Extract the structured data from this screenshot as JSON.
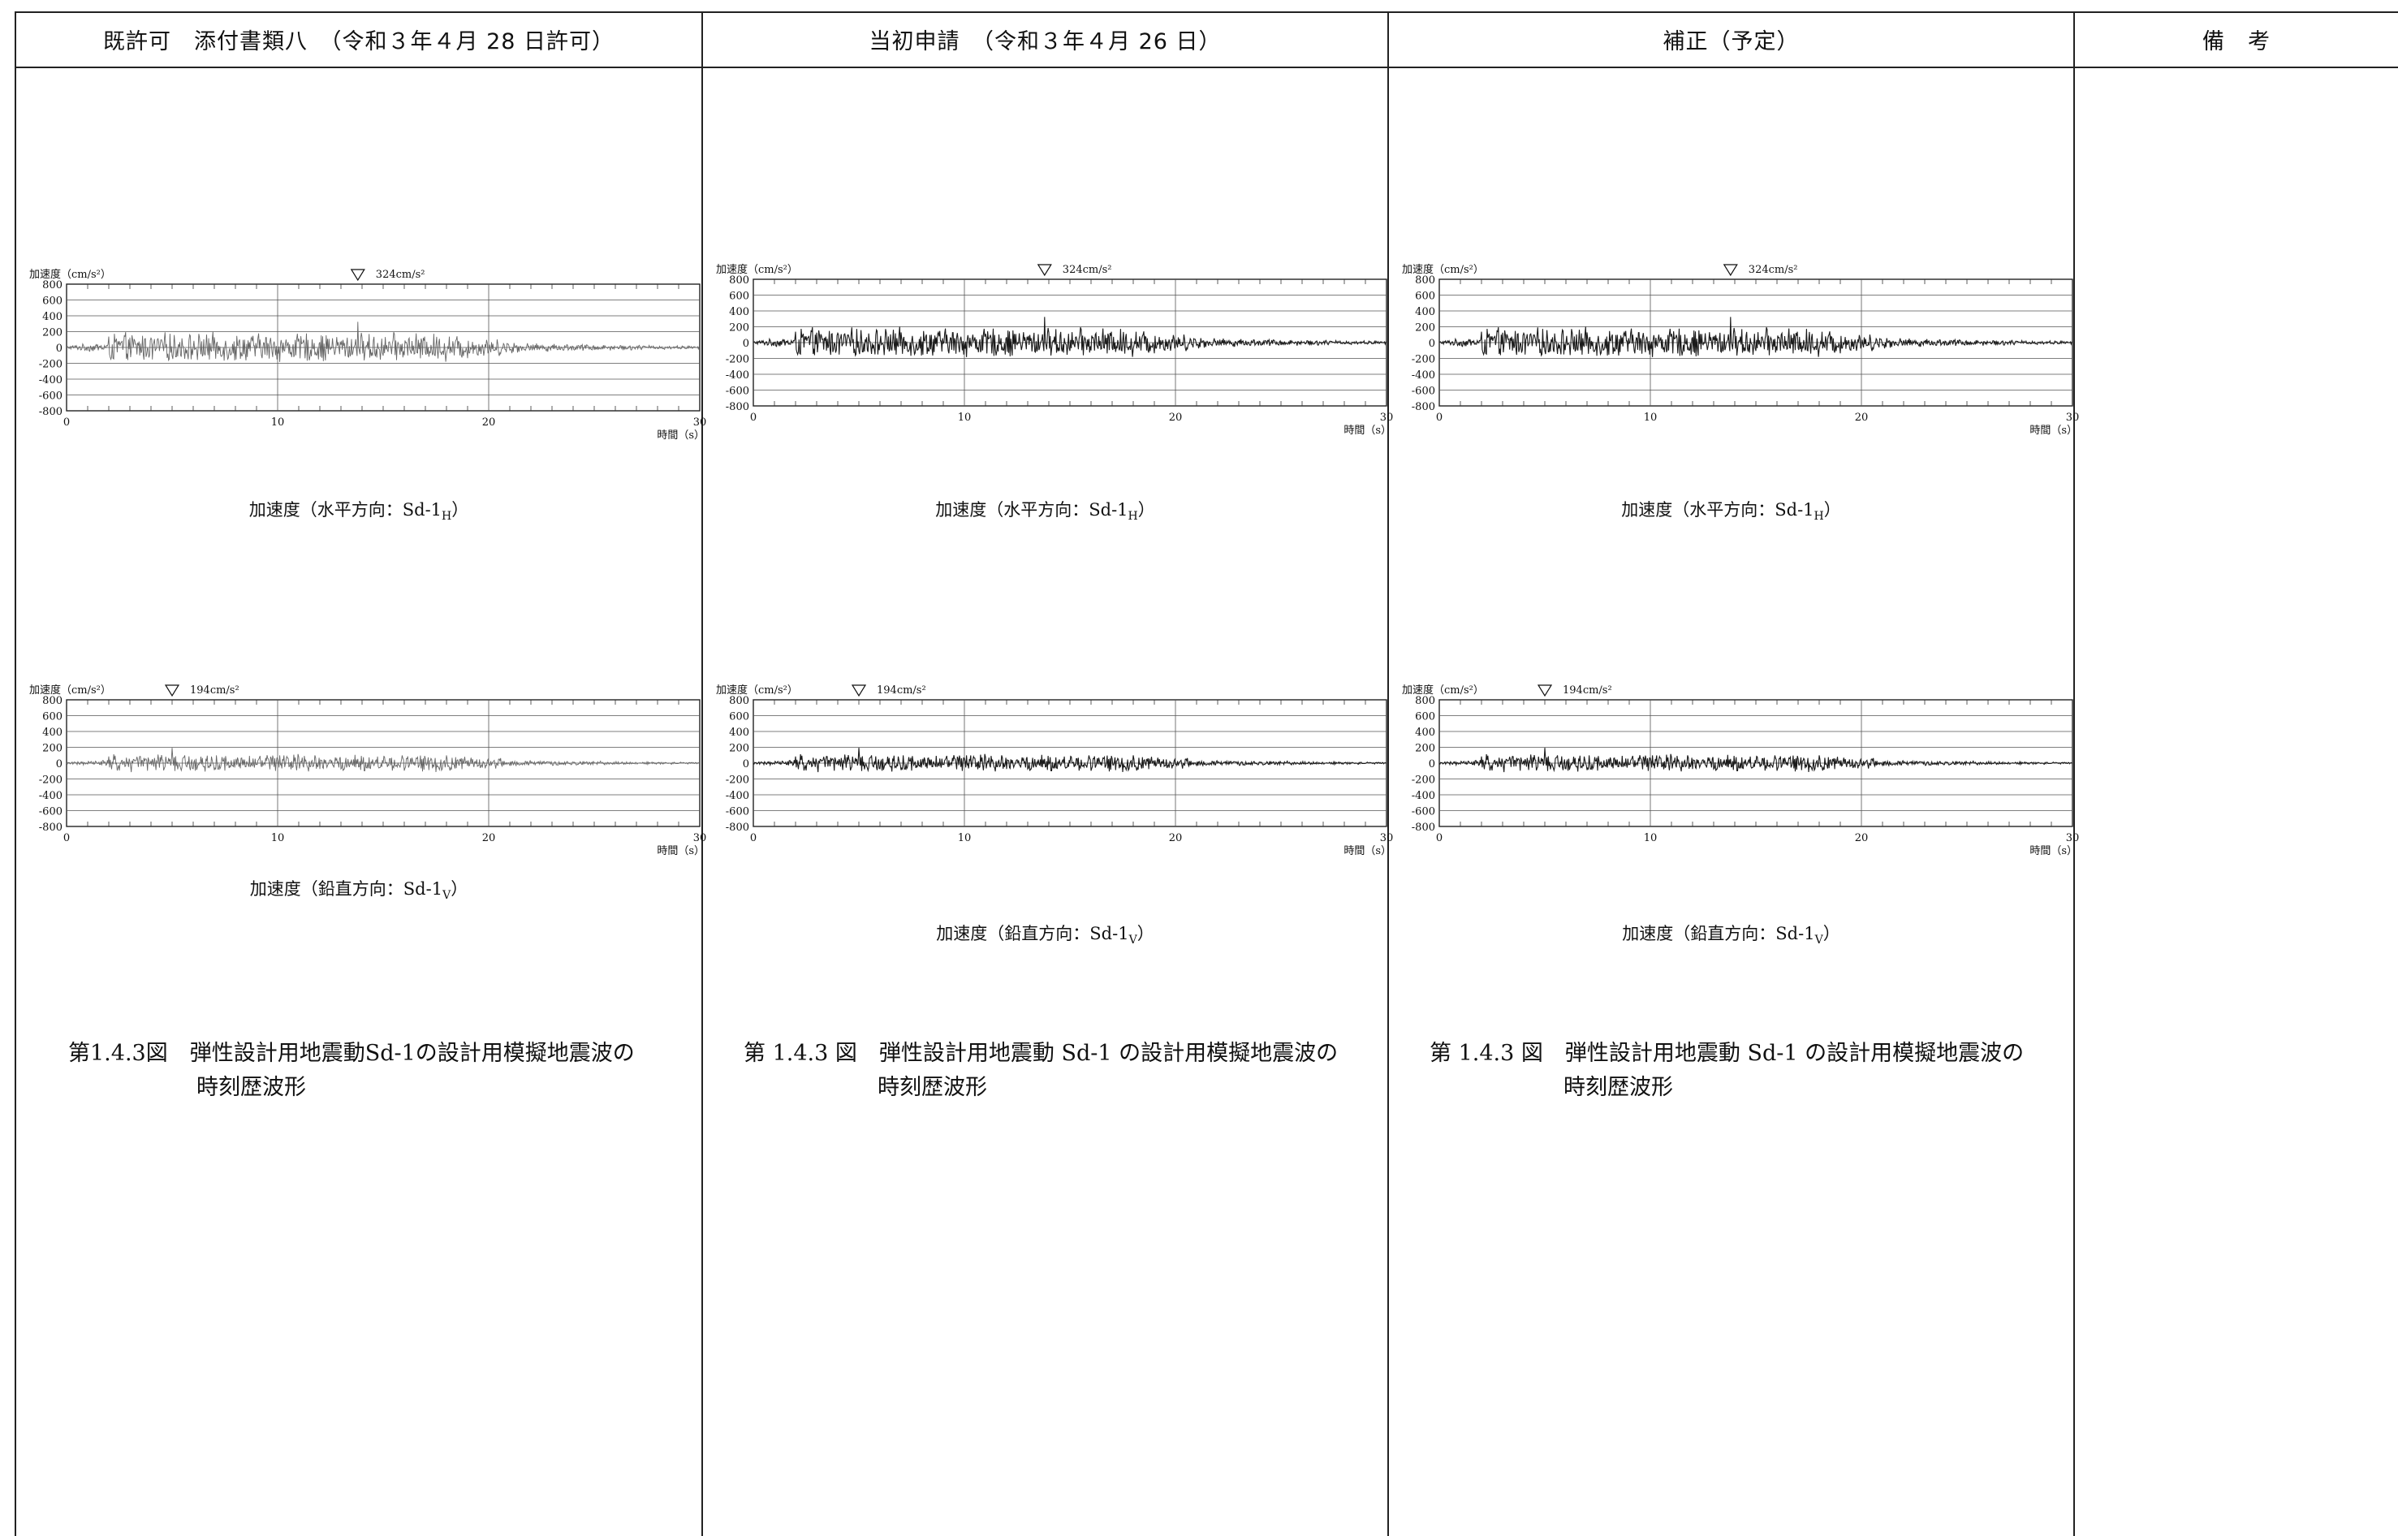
{
  "header": {
    "col1": "既許可　添付書類八　（令和３年４月 28 日許可）",
    "col2": "当初申請　（令和３年４月 26 日）",
    "col3": "補正（予定）",
    "col4": "備　考"
  },
  "columns": [
    {
      "h_chart": {
        "ylabel": "加速度（cm/s²）",
        "peak_label": "324cm/s²",
        "xlabel": "時間（s）"
      },
      "h_caption": "加速度（水平方向：Sd-1H）",
      "v_chart": {
        "ylabel": "加速度（cm/s²）",
        "peak_label": "194cm/s²",
        "xlabel": "時間（s）"
      },
      "v_caption": "加速度（鉛直方向：Sd-1V）",
      "figure_line1": "第1.4.3図　弾性設計用地震動Sd-1の設計用模擬地震波の",
      "figure_line2": "時刻歴波形"
    },
    {
      "h_chart": {
        "ylabel": "加速度（cm/s²）",
        "peak_label": "324cm/s²",
        "xlabel": "時間（s）"
      },
      "h_caption": "加速度（水平方向：Sd-1H）",
      "v_chart": {
        "ylabel": "加速度（cm/s²）",
        "peak_label": "194cm/s²",
        "xlabel": "時間（s）"
      },
      "v_caption": "加速度（鉛直方向：Sd-1V）",
      "figure_line1": "第 1.4.3 図　弾性設計用地震動 Sd-1 の設計用模擬地震波の",
      "figure_line2": "時刻歴波形"
    },
    {
      "h_chart": {
        "ylabel": "加速度（cm/s²）",
        "peak_label": "324cm/s²",
        "xlabel": "時間（s）"
      },
      "h_caption": "加速度（水平方向：Sd-1H）",
      "v_chart": {
        "ylabel": "加速度（cm/s²）",
        "peak_label": "194cm/s²",
        "xlabel": "時間（s）"
      },
      "v_caption": "加速度（鉛直方向：Sd-1V）",
      "figure_line1": "第 1.4.3 図　弾性設計用地震動 Sd-1 の設計用模擬地震波の",
      "figure_line2": "時刻歴波形"
    }
  ],
  "chart_data": [
    {
      "type": "line",
      "series": [
        {
          "name": "Sd-1H",
          "peak": 324,
          "peak_time": 13.8
        }
      ],
      "xlim": [
        0,
        30
      ],
      "ylim": [
        -800,
        800
      ],
      "x_ticks": [
        0,
        10,
        20,
        30
      ],
      "y_ticks": [
        800,
        600,
        400,
        200,
        0,
        -200,
        -400,
        -600,
        -800
      ],
      "grid": true
    },
    {
      "type": "line",
      "series": [
        {
          "name": "Sd-1V",
          "peak": 194,
          "peak_time": 5.0
        }
      ],
      "xlim": [
        0,
        30
      ],
      "ylim": [
        -800,
        800
      ],
      "x_ticks": [
        0,
        10,
        20,
        30
      ],
      "y_ticks": [
        800,
        600,
        400,
        200,
        0,
        -200,
        -400,
        -600,
        -800
      ],
      "grid": true
    }
  ],
  "colors": {
    "rule": "#222222",
    "wave_old": "#666666",
    "wave_new": "#1a1a1a",
    "grid": "#555555"
  }
}
